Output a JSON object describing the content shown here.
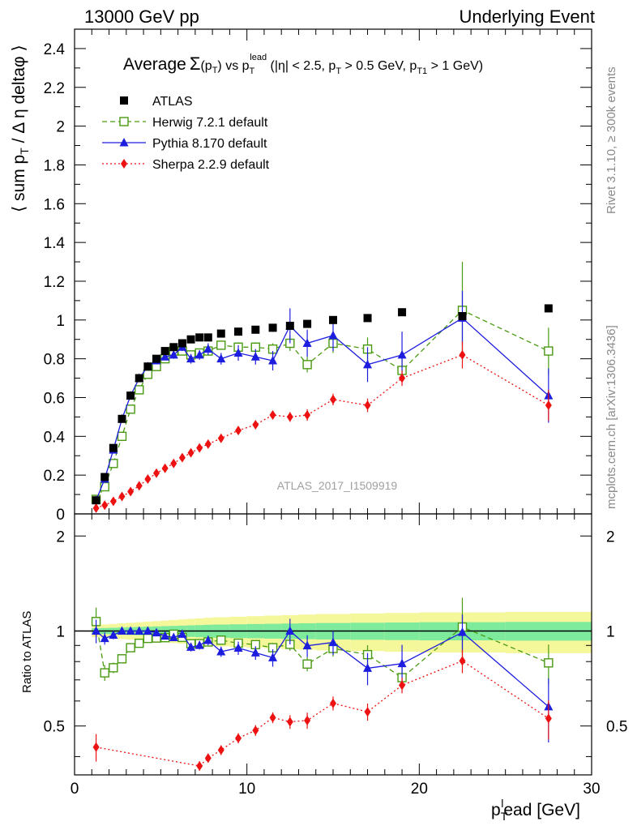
{
  "header": {
    "left": "13000 GeV pp",
    "right": "Underlying Event"
  },
  "side_labels": {
    "rivet": "Rivet 3.1.10, ≥ 300k events",
    "mcplots": "mcplots.cern.ch [arXiv:1306.3436]"
  },
  "watermark": "ATLAS_2017_I1509919",
  "chart_data": {
    "type": "scatter",
    "title_parts": {
      "average": "Average",
      "sigma": "Σ",
      "sigma_arg": "(p",
      "sigma_sub": "T",
      "sigma_close": ")",
      "vs": " vs p",
      "vs_sub": "T",
      "vs_sup": "lead",
      "cuts_open": " (|η| < 2.5, p",
      "cuts_sub1": "T",
      "cuts_mid": " > 0.5 GeV, p",
      "cuts_sub2": "T1",
      "cuts_end": " > 1 GeV)"
    },
    "ylabel_parts": {
      "pre": "⟨ sum p",
      "sub": "T",
      "post": " / Δ η deltaφ ⟩"
    },
    "xlabel_parts": {
      "p": "p",
      "sub": "T",
      "sup": "l",
      "rest": "ead [GeV]"
    },
    "ratio_ylabel": "Ratio to ATLAS",
    "xlim": [
      0,
      30
    ],
    "ylim": [
      0,
      2.5
    ],
    "ratio_ylim": [
      0.35,
      2.35
    ],
    "x_ticks": [
      0,
      10,
      20,
      30
    ],
    "y_ticks": [
      "0",
      "0.2",
      "0.4",
      "0.6",
      "0.8",
      "1",
      "1.2",
      "1.4",
      "1.6",
      "1.8",
      "2",
      "2.2",
      "2.4"
    ],
    "ratio_ticks": [
      "0.5",
      "1",
      "2"
    ],
    "legend": [
      "ATLAS",
      "Herwig 7.2.1 default",
      "Pythia 8.170 default",
      "Sherpa 2.2.9 default"
    ],
    "legend_position": "top-left",
    "x": [
      1.25,
      1.75,
      2.25,
      2.75,
      3.25,
      3.75,
      4.25,
      4.75,
      5.25,
      5.75,
      6.25,
      6.75,
      7.25,
      7.75,
      8.5,
      9.5,
      10.5,
      11.5,
      12.5,
      13.5,
      15.0,
      17.0,
      19.0,
      22.5,
      27.5
    ],
    "x_err": [
      0.25,
      0.25,
      0.25,
      0.25,
      0.25,
      0.25,
      0.25,
      0.25,
      0.25,
      0.25,
      0.25,
      0.25,
      0.25,
      0.25,
      0.5,
      0.5,
      0.5,
      0.5,
      0.5,
      0.5,
      1.0,
      1.0,
      1.0,
      2.5,
      2.5
    ],
    "series": [
      {
        "name": "ATLAS",
        "color": "#000000",
        "marker": "square",
        "values": [
          0.07,
          0.19,
          0.34,
          0.49,
          0.61,
          0.7,
          0.76,
          0.8,
          0.84,
          0.86,
          0.88,
          0.9,
          0.91,
          0.91,
          0.93,
          0.94,
          0.95,
          0.96,
          0.97,
          0.98,
          1.0,
          1.01,
          1.04,
          1.02,
          1.06
        ],
        "errors": [
          0,
          0,
          0,
          0,
          0,
          0,
          0,
          0,
          0,
          0,
          0,
          0,
          0,
          0,
          0,
          0,
          0,
          0,
          0,
          0,
          0,
          0,
          0,
          0,
          0
        ]
      },
      {
        "name": "Herwig 7.2.1 default",
        "color": "#4a9a12",
        "marker": "open-square",
        "dash": "6,4",
        "values": [
          0.075,
          0.14,
          0.26,
          0.4,
          0.54,
          0.64,
          0.72,
          0.76,
          0.8,
          0.84,
          0.84,
          0.82,
          0.83,
          0.84,
          0.87,
          0.86,
          0.86,
          0.85,
          0.88,
          0.77,
          0.88,
          0.85,
          0.74,
          1.05,
          0.84
        ],
        "errors": [
          0.008,
          0.008,
          0.01,
          0.01,
          0.012,
          0.012,
          0.012,
          0.015,
          0.015,
          0.015,
          0.015,
          0.018,
          0.02,
          0.02,
          0.02,
          0.025,
          0.025,
          0.03,
          0.04,
          0.04,
          0.05,
          0.06,
          0.06,
          0.25,
          0.12
        ]
      },
      {
        "name": "Pythia 8.170 default",
        "color": "#1d1de0",
        "marker": "triangle",
        "dash": "",
        "values": [
          0.07,
          0.18,
          0.33,
          0.49,
          0.61,
          0.7,
          0.76,
          0.79,
          0.81,
          0.82,
          0.86,
          0.8,
          0.82,
          0.85,
          0.8,
          0.83,
          0.81,
          0.79,
          0.97,
          0.88,
          0.92,
          0.77,
          0.82,
          1.01,
          0.61
        ],
        "errors": [
          0.006,
          0.008,
          0.01,
          0.01,
          0.012,
          0.012,
          0.015,
          0.015,
          0.018,
          0.02,
          0.02,
          0.025,
          0.025,
          0.03,
          0.03,
          0.04,
          0.04,
          0.05,
          0.09,
          0.07,
          0.08,
          0.09,
          0.12,
          0.14,
          0.14
        ]
      },
      {
        "name": "Sherpa 2.2.9 default",
        "color": "#ee1111",
        "marker": "diamond",
        "dash": "2,3",
        "values": [
          0.03,
          0.045,
          0.065,
          0.09,
          0.115,
          0.145,
          0.18,
          0.21,
          0.235,
          0.26,
          0.29,
          0.315,
          0.34,
          0.36,
          0.39,
          0.43,
          0.46,
          0.51,
          0.5,
          0.51,
          0.59,
          0.56,
          0.7,
          0.82,
          0.56
        ],
        "errors": [
          0.003,
          0.004,
          0.005,
          0.005,
          0.006,
          0.006,
          0.007,
          0.008,
          0.008,
          0.009,
          0.01,
          0.01,
          0.012,
          0.012,
          0.014,
          0.016,
          0.018,
          0.02,
          0.025,
          0.03,
          0.03,
          0.035,
          0.04,
          0.07,
          0.08
        ]
      }
    ],
    "ratio_band_colors": {
      "inner": "#7dea9c",
      "outer": "#f4f79a"
    }
  }
}
